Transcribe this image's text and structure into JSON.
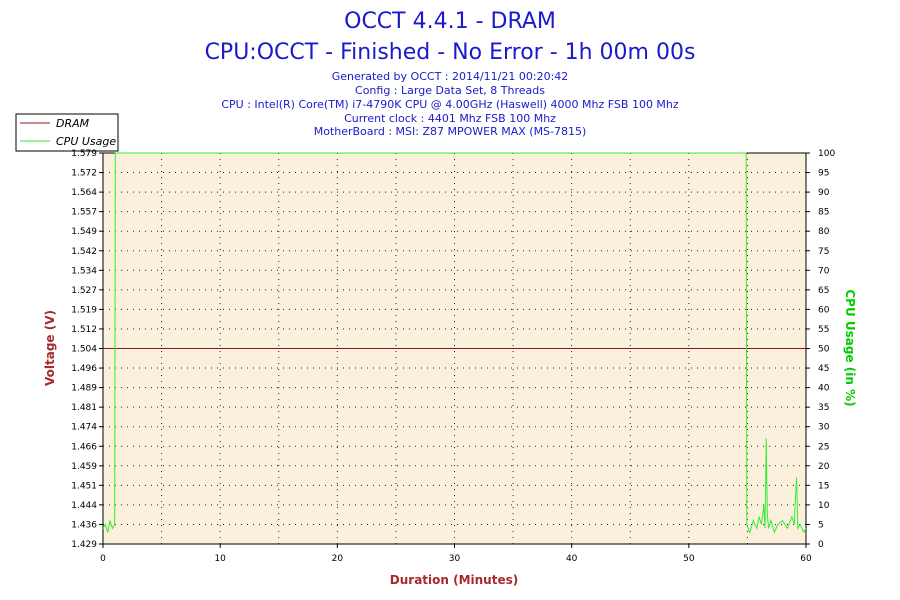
{
  "header": {
    "title": "OCCT 4.4.1 - DRAM",
    "subtitle": "CPU:OCCT - Finished - No Error - 1h 00m 00s",
    "generated": "Generated by OCCT : 2014/11/21 00:20:42",
    "config": "Config : Large Data Set, 8 Threads",
    "cpu": "CPU : Intel(R) Core(TM) i7-4790K CPU @ 4.00GHz (Haswell) 4000 Mhz FSB 100 Mhz",
    "clock": "Current clock : 4401 Mhz FSB 100 Mhz",
    "motherboard": "MotherBoard : MSI: Z87 MPOWER MAX (MS-7815)"
  },
  "colors": {
    "plot_bg": "#fbf0dc",
    "dram": "#8b1a1a",
    "cpu": "#33ee33",
    "text_blue": "#1a1acc"
  },
  "chart_data": {
    "type": "line",
    "xlabel": "Duration (Minutes)",
    "ylabel": "Voltage (V)",
    "y2label": "CPU Usage (in %)",
    "xlim": [
      0,
      60
    ],
    "ylim": [
      1.429,
      1.579
    ],
    "y2lim": [
      0,
      100
    ],
    "x_ticks": [
      "0",
      "10",
      "20",
      "30",
      "40",
      "50",
      "60"
    ],
    "y_ticks": [
      "1.429",
      "1.436",
      "1.444",
      "1.451",
      "1.459",
      "1.466",
      "1.474",
      "1.481",
      "1.489",
      "1.496",
      "1.504",
      "1.512",
      "1.519",
      "1.527",
      "1.534",
      "1.542",
      "1.549",
      "1.557",
      "1.564",
      "1.572",
      "1.579"
    ],
    "y2_ticks": [
      "0",
      "5",
      "10",
      "15",
      "20",
      "25",
      "30",
      "35",
      "40",
      "45",
      "50",
      "55",
      "60",
      "65",
      "70",
      "75",
      "80",
      "85",
      "90",
      "95",
      "100"
    ],
    "grid": true,
    "legend_position": "top-left",
    "series": [
      {
        "name": "DRAM",
        "axis": "left",
        "x": [
          0,
          60
        ],
        "y": [
          1.504,
          1.504
        ]
      },
      {
        "name": "CPU Usage",
        "axis": "right",
        "x": [
          0,
          0.2,
          0.4,
          0.6,
          0.8,
          1.0,
          1.05,
          54.9,
          54.95,
          55.2,
          55.5,
          55.8,
          56.0,
          56.2,
          56.4,
          56.5,
          56.6,
          56.7,
          56.8,
          57.0,
          57.3,
          57.6,
          58.0,
          58.4,
          58.8,
          59.0,
          59.1,
          59.2,
          59.3,
          59.5,
          59.8,
          60
        ],
        "y": [
          4,
          5,
          3,
          6,
          4,
          5,
          100,
          100,
          5,
          3,
          6,
          4,
          7,
          5,
          10,
          4,
          27,
          8,
          4,
          6,
          3,
          5,
          6,
          4,
          7,
          5,
          12,
          17,
          4,
          5,
          3,
          4
        ]
      }
    ]
  }
}
